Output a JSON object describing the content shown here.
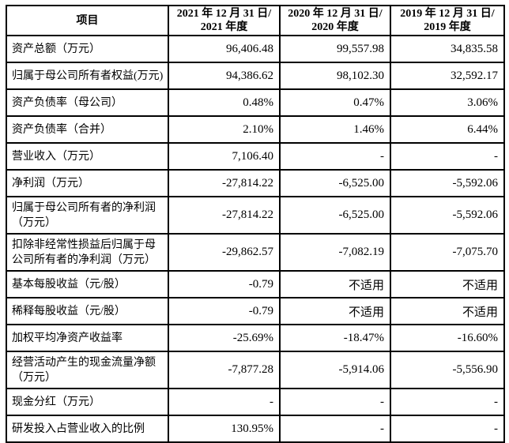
{
  "table": {
    "header": {
      "item_label": "项目",
      "col2021_line1": "2021 年 12 月 31 日/",
      "col2021_line2": "2021 年度",
      "col2020_line1": "2020 年 12 月 31 日/",
      "col2020_line2": "2020 年度",
      "col2019_line1": "2019 年 12 月 31 日/",
      "col2019_line2": "2019 年度"
    },
    "rows": [
      {
        "label": "资产总额（万元）",
        "values": [
          "96,406.48",
          "99,557.98",
          "34,835.58"
        ]
      },
      {
        "label": "归属于母公司所有者权益(万元)",
        "values": [
          "94,386.62",
          "98,102.30",
          "32,592.17"
        ]
      },
      {
        "label": "资产负债率（母公司）",
        "values": [
          "0.48%",
          "0.47%",
          "3.06%"
        ]
      },
      {
        "label": "资产负债率（合并）",
        "values": [
          "2.10%",
          "1.46%",
          "6.44%"
        ]
      },
      {
        "label": "营业收入（万元）",
        "values": [
          "7,106.40",
          "-",
          "-"
        ]
      },
      {
        "label": "净利润（万元）",
        "values": [
          "-27,814.22",
          "-6,525.00",
          "-5,592.06"
        ]
      },
      {
        "label": "归属于母公司所有者的净利润（万元）",
        "values": [
          "-27,814.22",
          "-6,525.00",
          "-5,592.06"
        ]
      },
      {
        "label": "扣除非经常性损益后归属于母公司所有者的净利润（万元）",
        "values": [
          "-29,862.57",
          "-7,082.19",
          "-7,075.70"
        ]
      },
      {
        "label": "基本每股收益（元/股）",
        "values": [
          "-0.79",
          "不适用",
          "不适用"
        ]
      },
      {
        "label": "稀释每股收益（元/股）",
        "values": [
          "-0.79",
          "不适用",
          "不适用"
        ]
      },
      {
        "label": "加权平均净资产收益率",
        "values": [
          "-25.69%",
          "-18.47%",
          "-16.60%"
        ]
      },
      {
        "label": "经营活动产生的现金流量净额（万元）",
        "values": [
          "-7,877.28",
          "-5,914.06",
          "-5,556.90"
        ]
      },
      {
        "label": "现金分红（万元）",
        "values": [
          "-",
          "-",
          "-"
        ]
      },
      {
        "label": "研发投入占营业收入的比例",
        "values": [
          "130.95%",
          "-",
          "-"
        ]
      }
    ],
    "colors": {
      "border": "#000000",
      "text": "#000000",
      "background": "#ffffff"
    }
  }
}
